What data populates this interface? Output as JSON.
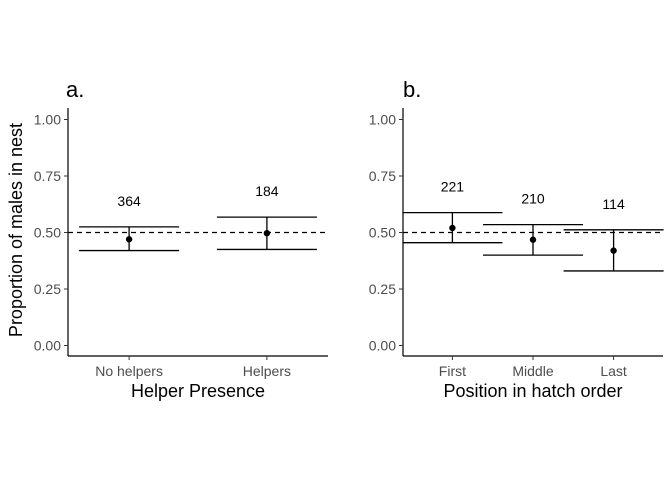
{
  "chart_data": [
    {
      "type": "scatter",
      "panel_label": "a.",
      "xlabel": "Helper Presence",
      "ylabel": "Proportion of males in nest",
      "ylim": [
        0,
        1
      ],
      "yticks": [
        "0.00",
        "0.25",
        "0.50",
        "0.75",
        "1.00"
      ],
      "ytick_values": [
        0,
        0.25,
        0.5,
        0.75,
        1
      ],
      "reference_line": 0.5,
      "categories": [
        "No helpers",
        "Helpers"
      ],
      "points": [
        {
          "category": "No helpers",
          "mean": 0.47,
          "lower": 0.42,
          "upper": 0.525,
          "n": "364"
        },
        {
          "category": "Helpers",
          "mean": 0.497,
          "lower": 0.425,
          "upper": 0.568,
          "n": "184"
        }
      ]
    },
    {
      "type": "scatter",
      "panel_label": "b.",
      "xlabel": "Position in hatch order",
      "ylabel": "",
      "ylim": [
        0,
        1
      ],
      "yticks": [
        "0.00",
        "0.25",
        "0.50",
        "0.75",
        "1.00"
      ],
      "ytick_values": [
        0,
        0.25,
        0.5,
        0.75,
        1
      ],
      "reference_line": 0.5,
      "categories": [
        "First",
        "Middle",
        "Last"
      ],
      "points": [
        {
          "category": "First",
          "mean": 0.52,
          "lower": 0.455,
          "upper": 0.588,
          "n": "221"
        },
        {
          "category": "Middle",
          "mean": 0.468,
          "lower": 0.4,
          "upper": 0.535,
          "n": "210"
        },
        {
          "category": "Last",
          "mean": 0.42,
          "lower": 0.33,
          "upper": 0.512,
          "n": "114"
        }
      ]
    }
  ]
}
